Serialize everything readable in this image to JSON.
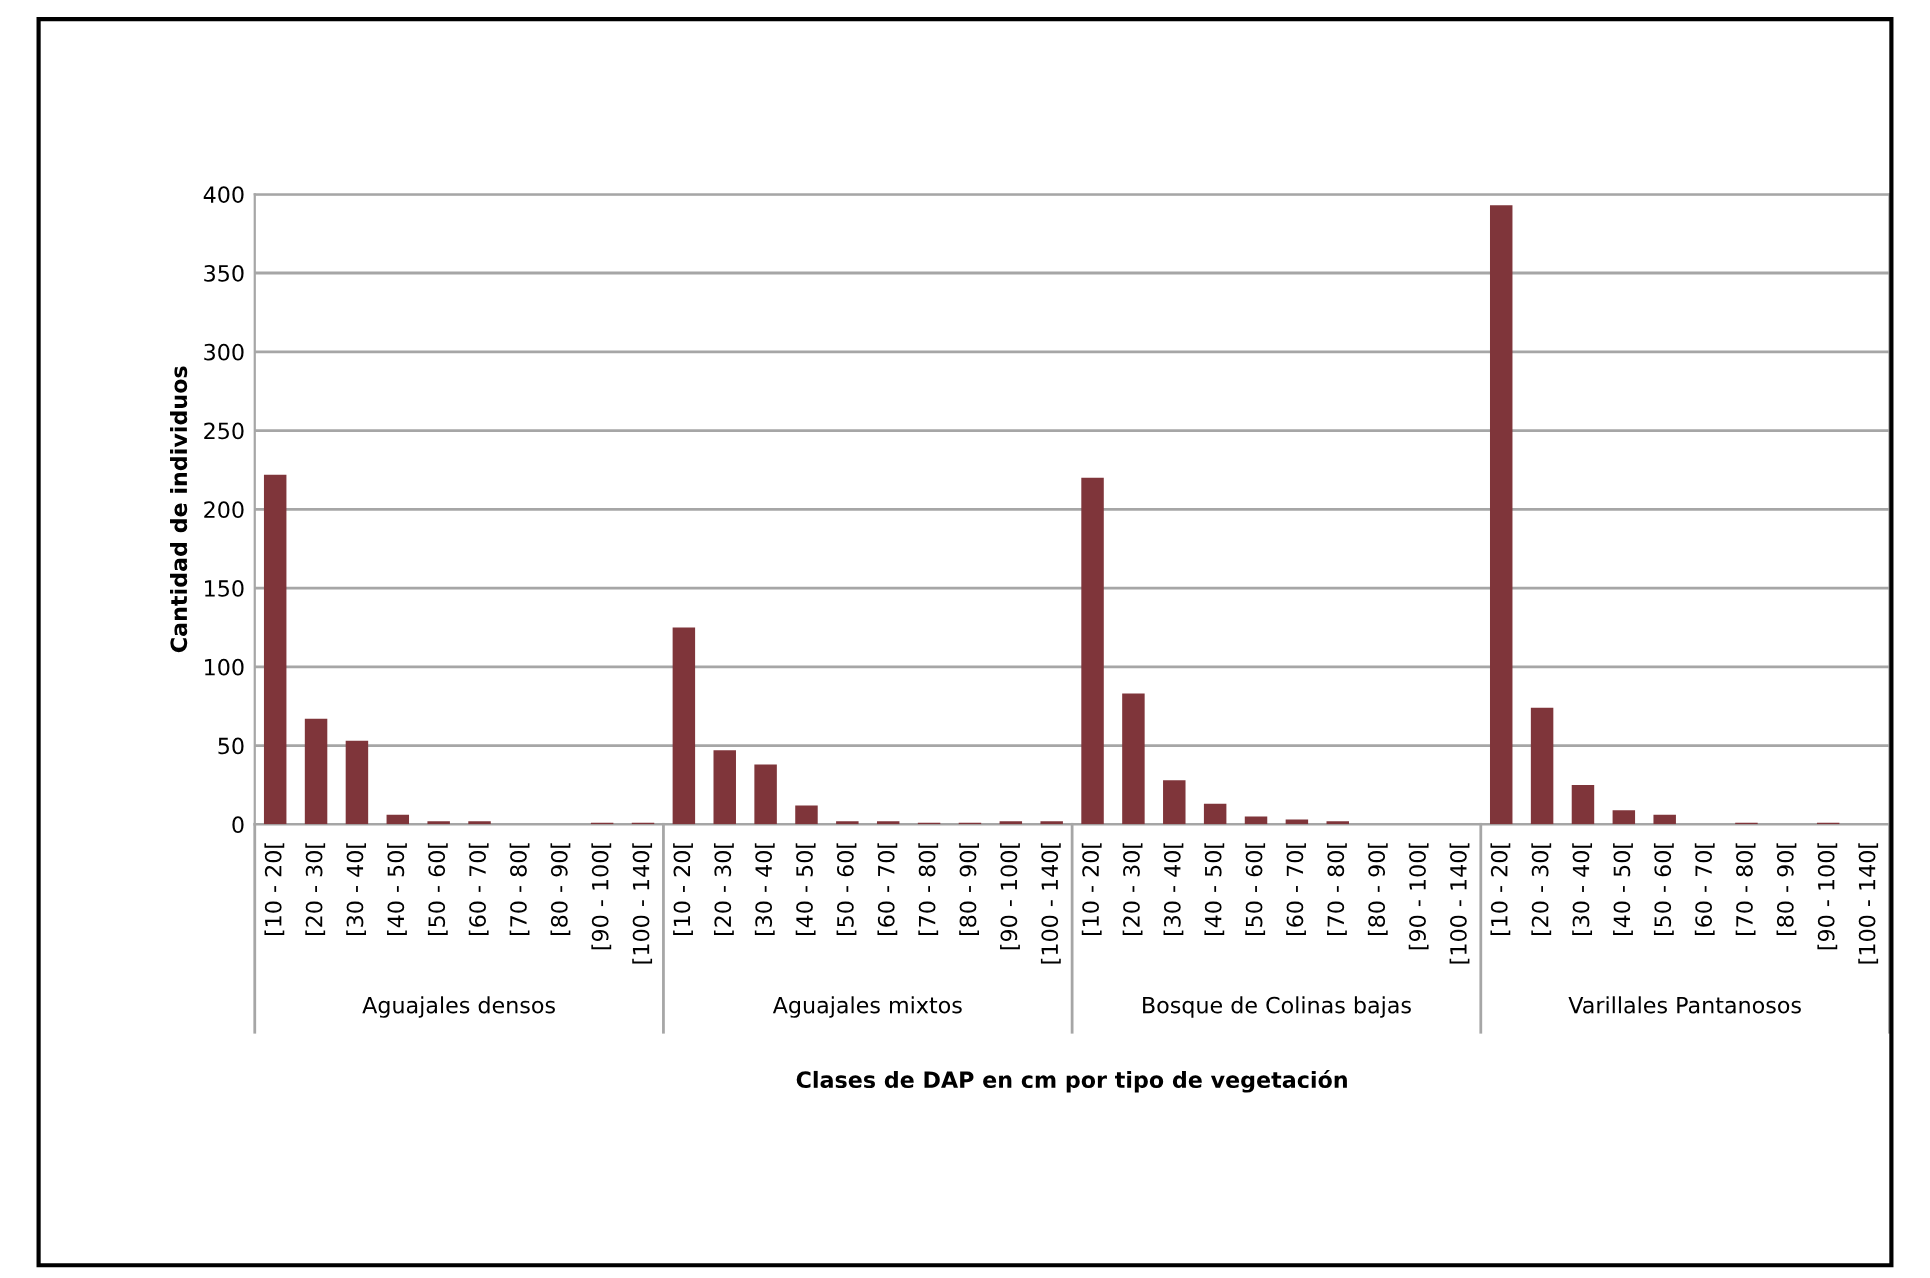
{
  "chart_data": {
    "type": "bar",
    "xlabel": "Clases de DAP en cm por tipo de vegetación",
    "ylabel": "Cantidad de individuos",
    "categories": [
      "[10 - 20[",
      "[20 - 30[",
      "[30 - 40[",
      "[40 - 50[",
      "[50 - 60[",
      "[60 - 70[",
      "[70 - 80[",
      "[80 - 90[",
      "[90 - 100[",
      "[100 - 140[",
      "[10 - 20[",
      "[20 - 30[",
      "[30 - 40[",
      "[40 - 50[",
      "[50 - 60[",
      "[60 - 70[",
      "[70 - 80[",
      "[80 - 90[",
      "[90 - 100[",
      "[100 - 140[",
      "[10 - 20[",
      "[20 - 30[",
      "[30 - 40[",
      "[40 - 50[",
      "[50 - 60[",
      "[60 - 70[",
      "[70 - 80[",
      "[80 - 90[",
      "[90 - 100[",
      "[100 - 140[",
      "[10 - 20[",
      "[20 - 30[",
      "[30 - 40[",
      "[40 - 50[",
      "[50 - 60[",
      "[60 - 70[",
      "[70 - 80[",
      "[80 - 90[",
      "[90 - 100[",
      "[100 - 140["
    ],
    "values": [
      222,
      67,
      53,
      6,
      2,
      2,
      0,
      0,
      1,
      1,
      125,
      47,
      38,
      12,
      2,
      2,
      1,
      1,
      2,
      2,
      220,
      83,
      28,
      13,
      5,
      3,
      2,
      0,
      0,
      0,
      393,
      74,
      25,
      9,
      6,
      0,
      1,
      0,
      1,
      0
    ],
    "color": "#7f353a",
    "ylim": [
      0,
      400
    ],
    "yticks": [
      0,
      50,
      100,
      150,
      200,
      250,
      300,
      350,
      400
    ],
    "grid": "y",
    "annotations": [
      "Aguajales densos",
      "Aguajales mixtos",
      "Bosque de Colinas bajas",
      "Varillales Pantanosos"
    ]
  }
}
